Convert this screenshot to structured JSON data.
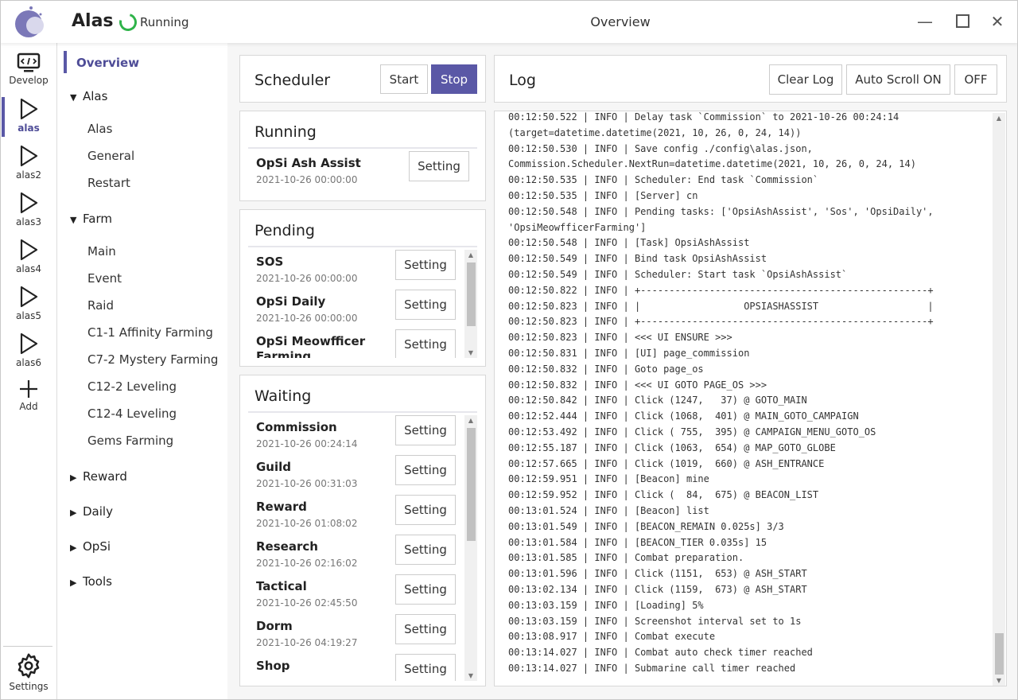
{
  "header": {
    "app_name": "Alas",
    "status": "Running",
    "page_title": "Overview",
    "status_color": "#2fb34a",
    "accent": "#5a58a6"
  },
  "iconbar": {
    "items": [
      {
        "label": "Develop",
        "icon": "code-monitor-icon"
      },
      {
        "label": "alas",
        "icon": "play-icon"
      },
      {
        "label": "alas2",
        "icon": "play-icon"
      },
      {
        "label": "alas3",
        "icon": "play-icon"
      },
      {
        "label": "alas4",
        "icon": "play-icon"
      },
      {
        "label": "alas5",
        "icon": "play-icon"
      },
      {
        "label": "alas6",
        "icon": "play-icon"
      },
      {
        "label": "Add",
        "icon": "plus-icon"
      }
    ],
    "settings": "Settings"
  },
  "nav": {
    "overview": "Overview",
    "groups": [
      {
        "label": "Alas",
        "expanded": true,
        "items": [
          "Alas",
          "General",
          "Restart"
        ]
      },
      {
        "label": "Farm",
        "expanded": true,
        "items": [
          "Main",
          "Event",
          "Raid",
          "C1-1 Affinity Farming",
          "C7-2 Mystery Farming",
          "C12-2 Leveling",
          "C12-4 Leveling",
          "Gems Farming"
        ]
      },
      {
        "label": "Reward",
        "expanded": false
      },
      {
        "label": "Daily",
        "expanded": false
      },
      {
        "label": "OpSi",
        "expanded": false
      },
      {
        "label": "Tools",
        "expanded": false
      }
    ]
  },
  "scheduler": {
    "title": "Scheduler",
    "start": "Start",
    "stop": "Stop"
  },
  "setting_label": "Setting",
  "running": {
    "title": "Running",
    "tasks": [
      {
        "name": "OpSi Ash Assist",
        "time": "2021-10-26 00:00:00"
      }
    ]
  },
  "pending": {
    "title": "Pending",
    "tasks": [
      {
        "name": "SOS",
        "time": "2021-10-26 00:00:00"
      },
      {
        "name": "OpSi Daily",
        "time": "2021-10-26 00:00:00"
      },
      {
        "name": "OpSi Meowfficer Farming",
        "time": ""
      }
    ]
  },
  "waiting": {
    "title": "Waiting",
    "tasks": [
      {
        "name": "Commission",
        "time": "2021-10-26 00:24:14"
      },
      {
        "name": "Guild",
        "time": "2021-10-26 00:31:03"
      },
      {
        "name": "Reward",
        "time": "2021-10-26 01:08:02"
      },
      {
        "name": "Research",
        "time": "2021-10-26 02:16:02"
      },
      {
        "name": "Tactical",
        "time": "2021-10-26 02:45:50"
      },
      {
        "name": "Dorm",
        "time": "2021-10-26 04:19:27"
      },
      {
        "name": "Shop",
        "time": ""
      }
    ]
  },
  "log": {
    "title": "Log",
    "clear": "Clear Log",
    "autoscroll_on": "Auto Scroll ON",
    "off": "OFF",
    "lines": [
      "00:12:50.522 | INFO | Delay task `Commission` to 2021-10-26 00:24:14",
      "(target=datetime.datetime(2021, 10, 26, 0, 24, 14))",
      "00:12:50.530 | INFO | Save config ./config\\alas.json,",
      "Commission.Scheduler.NextRun=datetime.datetime(2021, 10, 26, 0, 24, 14)",
      "00:12:50.535 | INFO | Scheduler: End task `Commission`",
      "00:12:50.535 | INFO | [Server] cn",
      "00:12:50.548 | INFO | Pending tasks: ['OpsiAshAssist', 'Sos', 'OpsiDaily',",
      "'OpsiMeowfficerFarming']",
      "00:12:50.548 | INFO | [Task] OpsiAshAssist",
      "00:12:50.549 | INFO | Bind task OpsiAshAssist",
      "00:12:50.549 | INFO | Scheduler: Start task `OpsiAshAssist`",
      "00:12:50.822 | INFO | +--------------------------------------------------+",
      "00:12:50.823 | INFO | |                  OPSIASHASSIST                   |",
      "00:12:50.823 | INFO | +--------------------------------------------------+",
      "00:12:50.823 | INFO | <<< UI ENSURE >>>",
      "00:12:50.831 | INFO | [UI] page_commission",
      "00:12:50.832 | INFO | Goto page_os",
      "00:12:50.832 | INFO | <<< UI GOTO PAGE_OS >>>",
      "00:12:50.842 | INFO | Click (1247,   37) @ GOTO_MAIN",
      "00:12:52.444 | INFO | Click (1068,  401) @ MAIN_GOTO_CAMPAIGN",
      "00:12:53.492 | INFO | Click ( 755,  395) @ CAMPAIGN_MENU_GOTO_OS",
      "00:12:55.187 | INFO | Click (1063,  654) @ MAP_GOTO_GLOBE",
      "00:12:57.665 | INFO | Click (1019,  660) @ ASH_ENTRANCE",
      "00:12:59.951 | INFO | [Beacon] mine",
      "00:12:59.952 | INFO | Click (  84,  675) @ BEACON_LIST",
      "00:13:01.524 | INFO | [Beacon] list",
      "00:13:01.549 | INFO | [BEACON_REMAIN 0.025s] 3/3",
      "00:13:01.584 | INFO | [BEACON_TIER 0.035s] 15",
      "00:13:01.585 | INFO | Combat preparation.",
      "00:13:01.596 | INFO | Click (1151,  653) @ ASH_START",
      "00:13:02.134 | INFO | Click (1159,  673) @ ASH_START",
      "00:13:03.159 | INFO | [Loading] 5%",
      "00:13:03.159 | INFO | Screenshot interval set to 1s",
      "00:13:08.917 | INFO | Combat execute",
      "00:13:14.027 | INFO | Combat auto check timer reached",
      "00:13:14.027 | INFO | Submarine call timer reached"
    ]
  }
}
